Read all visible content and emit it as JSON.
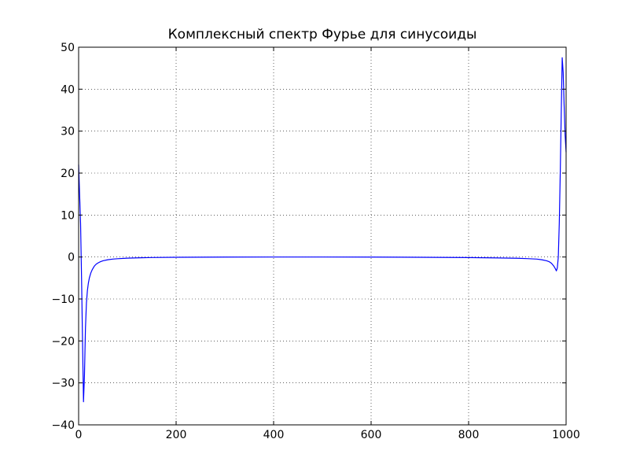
{
  "chart_data": {
    "type": "line",
    "title": "Комплексный спектр Фурье для синусоиды",
    "xlabel": "",
    "ylabel": "",
    "xlim": [
      0,
      1000
    ],
    "ylim": [
      -40,
      50
    ],
    "xticks": [
      0,
      200,
      400,
      600,
      800,
      1000
    ],
    "xtick_labels": [
      "0",
      "200",
      "400",
      "600",
      "800",
      "1000"
    ],
    "yticks": [
      -40,
      -30,
      -20,
      -10,
      0,
      10,
      20,
      30,
      40,
      50
    ],
    "ytick_labels": [
      "−40",
      "−30",
      "−20",
      "−10",
      "0",
      "10",
      "20",
      "30",
      "40",
      "50"
    ],
    "grid": true,
    "line_color": "#0000ff",
    "series": [
      {
        "x": [
          0,
          2,
          4,
          6,
          8,
          10,
          12,
          14,
          16,
          18,
          20,
          22,
          25,
          28,
          32,
          36,
          40,
          45,
          50,
          60,
          70,
          80,
          100,
          120,
          150,
          200,
          300,
          400,
          500,
          600,
          700,
          800,
          850,
          900,
          920,
          940,
          950,
          960,
          965,
          970,
          975,
          978,
          980,
          982,
          984,
          986,
          988,
          990,
          992,
          994,
          996,
          998,
          1000
        ],
        "y": [
          22,
          15,
          8,
          -5,
          -20,
          -34.5,
          -28,
          -17,
          -11,
          -8,
          -6.2,
          -5,
          -3.8,
          -3,
          -2.2,
          -1.7,
          -1.4,
          -1.1,
          -0.9,
          -0.65,
          -0.5,
          -0.4,
          -0.28,
          -0.2,
          -0.12,
          -0.06,
          -0.02,
          0,
          0,
          -0.02,
          -0.06,
          -0.14,
          -0.2,
          -0.3,
          -0.38,
          -0.5,
          -0.65,
          -0.9,
          -1.1,
          -1.5,
          -2.2,
          -2.8,
          -3.3,
          -2.6,
          0,
          8,
          20,
          34,
          47.5,
          44,
          36,
          29,
          25
        ]
      }
    ]
  }
}
